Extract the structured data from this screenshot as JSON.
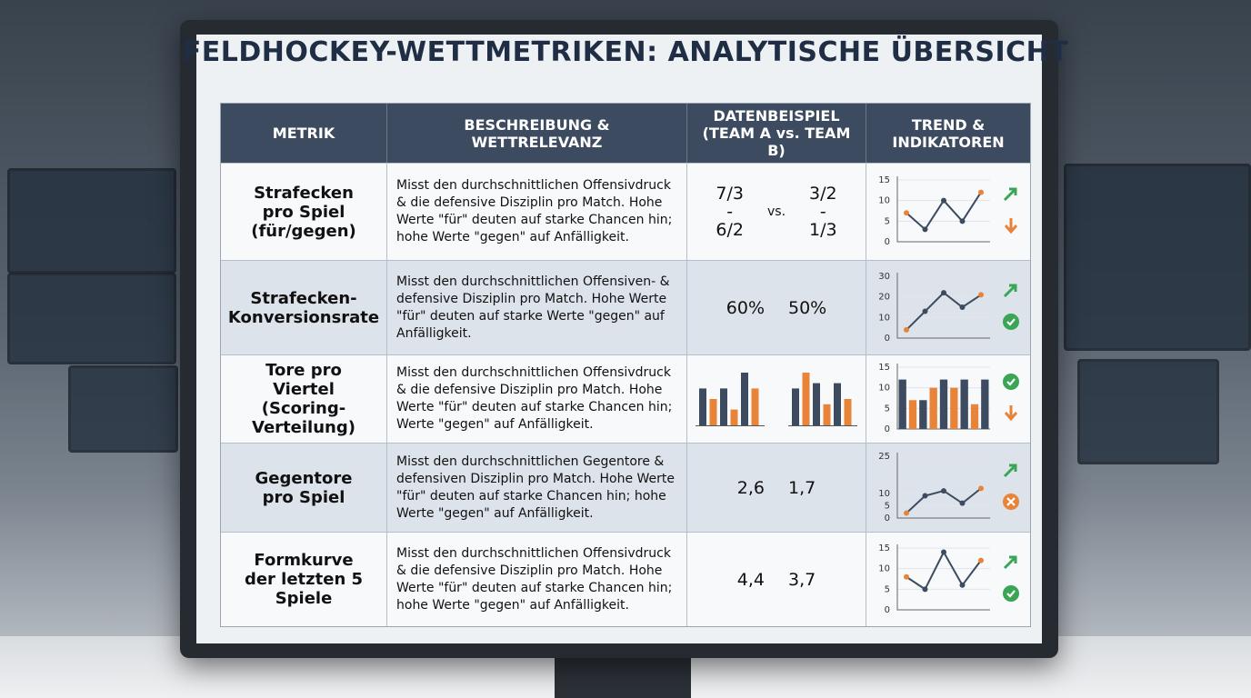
{
  "title": "FELDHOCKEY-WETTMETRIKEN: ANALYTISCHE ÜBERSICHT",
  "palette": {
    "dark": "#3d4b60",
    "accent": "#e8843a",
    "good": "#3aa655"
  },
  "table": {
    "headers": [
      "METRIK",
      "BESCHREIBUNG & WETTRELEVANZ",
      "DATENBEISPIEL (TEAM A vs. TEAM B)",
      "TREND & INDIKATOREN"
    ],
    "rows": [
      {
        "metric": "Strafecken pro Spiel (für/gegen)",
        "description": "Misst den durchschnittlichen Offensivdruck & die defensive Disziplin pro Match. Hohe Werte \"für\" deuten auf starke Chancen hin; hohe Werte \"gegen\" auf Anfälligkeit.",
        "example": {
          "team_a": [
            "7/3",
            "-",
            "6/2"
          ],
          "vs": "vs.",
          "team_b": [
            "3/2",
            "-",
            "1/3"
          ]
        },
        "trend": {
          "type": "line",
          "ylim": [
            0,
            15
          ],
          "yticks": [
            0,
            5,
            10,
            15
          ],
          "values": [
            7,
            3,
            10,
            5,
            12
          ]
        }
      },
      {
        "metric": "Strafecken-Konversionsrate",
        "description": "Misst den durchschnittlichen Offensiven- & defensive Disziplin pro Match. Hohe Werte \"für\" deuten auf starke Werte \"gegen\" auf Anfälligkeit.",
        "example": {
          "team_a": [
            "60%"
          ],
          "team_b": [
            "50%"
          ]
        },
        "trend": {
          "type": "line",
          "ylim": [
            0,
            30
          ],
          "yticks": [
            0,
            10,
            20,
            30
          ],
          "values": [
            4,
            13,
            22,
            15,
            21
          ]
        }
      },
      {
        "metric": "Tore pro Viertel (Scoring-Verteilung)",
        "description": "Misst den durchschnittlichen Offensivdruck & die defensive Disziplin pro Match. Hohe Werte \"für\" deuten auf starke Chancen hin; Werte \"gegen\" auf Anfälligkeit.",
        "example": {
          "bars_a": [
            7,
            5,
            7,
            3,
            10,
            7
          ],
          "bars_b": [
            7,
            10,
            8,
            4,
            8,
            5
          ]
        },
        "trend": {
          "type": "bar",
          "ylim": [
            0,
            15
          ],
          "yticks": [
            0,
            5,
            10,
            15
          ],
          "values": [
            12,
            7,
            7,
            10,
            12,
            10,
            12,
            6,
            12
          ]
        }
      },
      {
        "metric": "Gegentore pro Spiel",
        "description": "Misst den durchschnittlichen Gegentore & defensiven Disziplin pro Match. Hohe Werte \"für\" deuten auf starke Chancen hin; hohe Werte \"gegen\" auf Anfälligkeit.",
        "example": {
          "team_a": [
            "2,6"
          ],
          "team_b": [
            "1,7"
          ]
        },
        "trend": {
          "type": "line",
          "ylim": [
            0,
            25
          ],
          "yticks": [
            0,
            5,
            10,
            25
          ],
          "values": [
            2,
            9,
            11,
            6,
            12
          ]
        }
      },
      {
        "metric": "Formkurve der letzten 5 Spiele",
        "description": "Misst den durchschnittlichen Offensivdruck & die defensive Disziplin pro Match. Hohe Werte \"für\" deuten auf starke Chancen hin; hohe Werte \"gegen\" auf Anfälligkeit.",
        "example": {
          "team_a": [
            "4,4"
          ],
          "team_b": [
            "3,7"
          ]
        },
        "trend": {
          "type": "line",
          "ylim": [
            0,
            15
          ],
          "yticks": [
            0,
            5,
            10,
            15
          ],
          "values": [
            8,
            5,
            14,
            6,
            12
          ]
        }
      }
    ]
  }
}
